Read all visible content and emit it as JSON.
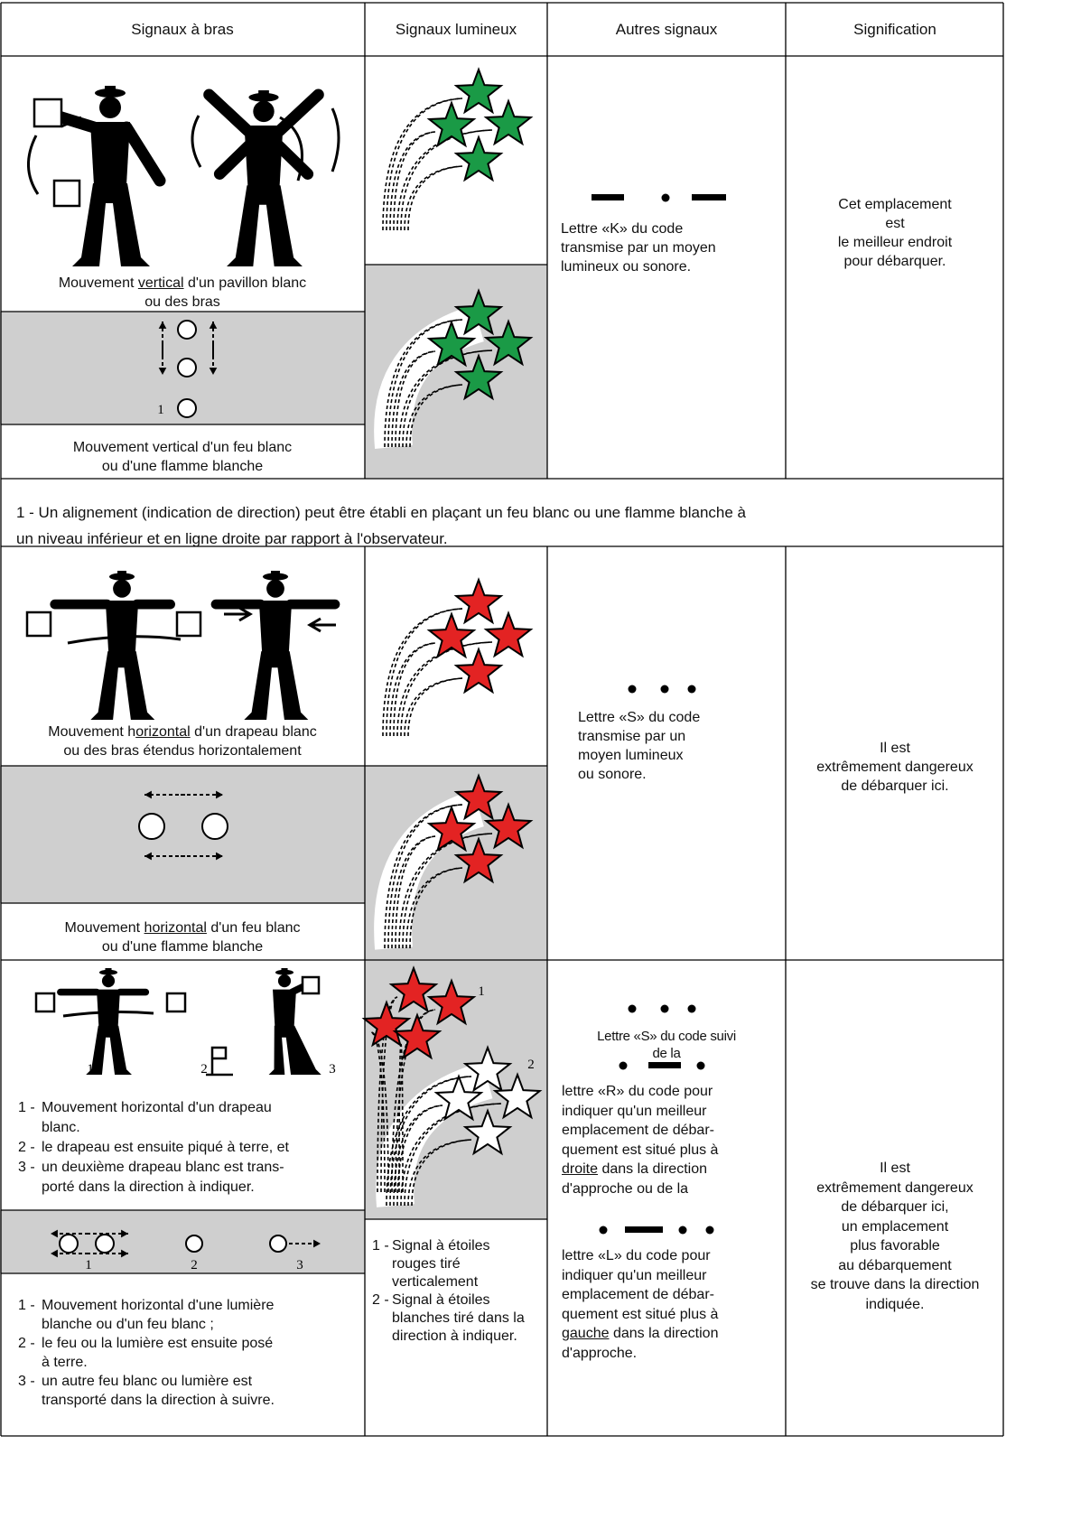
{
  "header": [
    "Signaux à bras",
    "Signaux lumineux",
    "Autres signaux",
    "Signification"
  ],
  "sections": [
    {
      "arm_caption": [
        [
          "Mouvement ",
          {
            "u": "vertical"
          },
          " d'un pavillon blanc"
        ],
        "ou des bras"
      ],
      "light_figure_label": "1",
      "light_caption": [
        "Mouvement vertical d'un feu blanc",
        "ou d'une flamme blanche"
      ],
      "other": [
        "Lettre «K» du code",
        "transmise par un moyen",
        "lumineux ou sonore."
      ],
      "meaning": [
        "Cet emplacement",
        "est",
        "le meilleur endroit",
        "pour débarquer."
      ]
    },
    {
      "arm_caption": [
        [
          "Mouvement h",
          {
            "u": "orizontal"
          },
          " d'un drapeau blanc"
        ],
        "ou des bras étendus horizontalement"
      ],
      "light_caption": [
        [
          "Mouvement ",
          {
            "u": "horizontal"
          },
          " d'un feu blanc"
        ],
        "ou d'une flamme blanche"
      ],
      "other": [
        "Lettre «S» du code",
        "transmise par un",
        "moyen lumineux",
        "ou sonore."
      ],
      "meaning": [
        "Il est",
        "extrêmement dangereux",
        "de débarquer ici."
      ]
    },
    {
      "figure_labels": [
        "1",
        "2",
        "3"
      ],
      "arm_steps": [
        {
          "number": "1 -",
          "lines": [
            "Mouvement horizontal d'un drapeau",
            "blanc."
          ]
        },
        {
          "number": "2 -",
          "lines": [
            "le drapeau est ensuite piqué à terre, et"
          ]
        },
        {
          "number": "3 -",
          "lines": [
            "un deuxième drapeau blanc est trans-",
            "porté dans la direction à indiquer."
          ]
        }
      ],
      "light_figure_labels": [
        "1",
        "2",
        "3"
      ],
      "light_steps": [
        {
          "number": "1 -",
          "lines": [
            "Mouvement horizontal d'une lumière",
            "blanche ou d'un feu blanc ;"
          ]
        },
        {
          "number": "2 -",
          "lines": [
            "le feu ou la lumière est ensuite posé",
            "à terre."
          ]
        },
        {
          "number": "3 -",
          "lines": [
            "un autre feu blanc ou lumière est",
            "transporté dans la direction à suivre."
          ]
        }
      ],
      "signal_labels": [
        "1",
        "2"
      ],
      "signal_steps": [
        {
          "number": "1 -",
          "lines": [
            "Signal à étoiles",
            "rouges tiré",
            "verticalement"
          ]
        },
        {
          "number": "2 -",
          "lines": [
            "Signal à étoiles",
            "blanches tiré dans la",
            "direction à indiquer."
          ]
        }
      ],
      "other": [
        [
          "Lettre «S» du code suivi",
          "de la"
        ],
        [
          "lettre «R» du code pour",
          "indiquer qu'un meilleur",
          "emplacement de débar-",
          "quement est situé plus à",
          [
            {
              "u": "droite"
            },
            " dans la direction"
          ],
          "d'approche ou de la"
        ],
        [
          "lettre «L» du code pour",
          "indiquer qu'un meilleur",
          "emplacement de débar-",
          "quement est situé plus à",
          [
            {
              "u": "gauche"
            },
            " dans la direction"
          ],
          "d'approche."
        ]
      ],
      "meaning": [
        "Il est",
        "extrêmement dangereux",
        "de débarquer ici,",
        "un emplacement",
        "plus favorable",
        "au débarquement",
        "se trouve dans la direction",
        "indiquée."
      ]
    }
  ],
  "note": [
    "1 - Un alignement (indication de direction) peut être établi en plaçant un feu blanc ou une flamme blanche à",
    "un niveau inférieur et en ligne droite par rapport à l'observateur."
  ]
}
